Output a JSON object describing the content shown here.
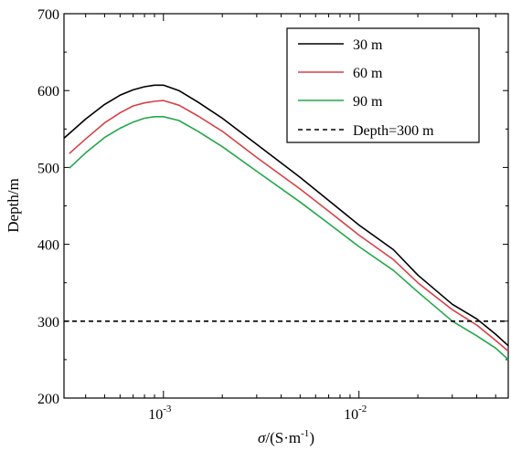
{
  "chart_data": {
    "type": "line",
    "xlabel": {
      "sigma": "σ",
      "unit": "/(S·m",
      "exp": "-1",
      "close": ")"
    },
    "ylabel": "Depth/m",
    "x_scale": "log",
    "xlim": [
      0.00031,
      0.058
    ],
    "ylim": [
      200,
      700
    ],
    "y_ticks": [
      200,
      300,
      400,
      500,
      600,
      700
    ],
    "x_major_ticks": [
      {
        "value": 0.001,
        "base": "10",
        "exp": "-3"
      },
      {
        "value": 0.01,
        "base": "10",
        "exp": "-2"
      }
    ],
    "x_minor_ticks": [
      0.0004,
      0.0005,
      0.0006,
      0.0007,
      0.0008,
      0.0009,
      0.002,
      0.003,
      0.004,
      0.005,
      0.006,
      0.007,
      0.008,
      0.009,
      0.02,
      0.03,
      0.04,
      0.05
    ],
    "legend_position": "top-right",
    "series": [
      {
        "name": "30 m",
        "color": "#000000",
        "dash": "solid",
        "x": [
          0.00031,
          0.0004,
          0.0005,
          0.0006,
          0.0007,
          0.0008,
          0.0009,
          0.001,
          0.0012,
          0.0015,
          0.002,
          0.003,
          0.005,
          0.007,
          0.01,
          0.015,
          0.02,
          0.03,
          0.04,
          0.05,
          0.058
        ],
        "y": [
          538,
          563,
          582,
          594,
          601,
          605,
          607,
          607,
          600,
          585,
          564,
          530,
          487,
          457,
          425,
          393,
          360,
          322,
          303,
          283,
          268
        ]
      },
      {
        "name": "60 m",
        "color": "#d94045",
        "dash": "solid",
        "x": [
          0.00033,
          0.0004,
          0.0005,
          0.0006,
          0.0007,
          0.0008,
          0.0009,
          0.001,
          0.0012,
          0.0015,
          0.002,
          0.003,
          0.005,
          0.007,
          0.01,
          0.015,
          0.02,
          0.03,
          0.04,
          0.05,
          0.058
        ],
        "y": [
          518,
          537,
          558,
          571,
          580,
          584,
          586,
          587,
          581,
          567,
          547,
          513,
          472,
          443,
          412,
          380,
          350,
          315,
          295,
          275,
          261
        ]
      },
      {
        "name": "90 m",
        "color": "#22a84a",
        "dash": "solid",
        "x": [
          0.00033,
          0.0004,
          0.0005,
          0.0006,
          0.0007,
          0.0008,
          0.0009,
          0.001,
          0.0012,
          0.0015,
          0.002,
          0.003,
          0.005,
          0.007,
          0.01,
          0.015,
          0.02,
          0.03,
          0.04,
          0.05,
          0.058
        ],
        "y": [
          499,
          519,
          539,
          551,
          559,
          564,
          566,
          566,
          561,
          547,
          527,
          495,
          455,
          427,
          397,
          366,
          338,
          300,
          281,
          265,
          250
        ]
      },
      {
        "name": "Depth=300 m",
        "color": "#000000",
        "dash": "dashed",
        "x": [
          0.00031,
          0.058
        ],
        "y": [
          300,
          300
        ]
      }
    ]
  }
}
